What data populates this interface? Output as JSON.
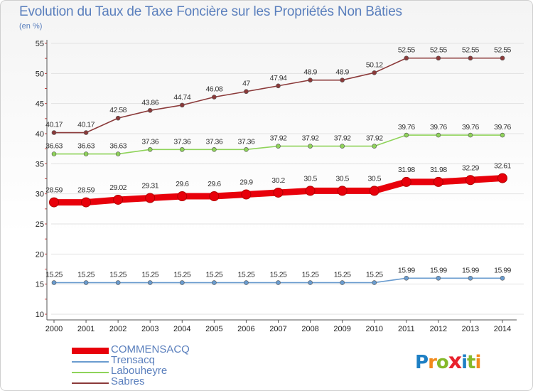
{
  "title": "Evolution du Taux de Taxe Foncière sur les Propriétés Non Bâties",
  "subtitle": "(en %)",
  "logo": {
    "text": [
      "P",
      "r",
      "o",
      "x",
      "i",
      "t",
      "i"
    ],
    "colors": [
      "#1e7fc4",
      "#f28a1c",
      "#86b92a",
      "#e8222d",
      "#1e7fc4",
      "#86b92a",
      "#f28a1c"
    ]
  },
  "chart_data": {
    "type": "line",
    "title": "Evolution du Taux de Taxe Foncière sur les Propriétés Non Bâties",
    "ylabel": "(en %)",
    "xlabel": "",
    "x": [
      "2000",
      "2001",
      "2002",
      "2003",
      "2004",
      "2005",
      "2006",
      "2007",
      "2008",
      "2009",
      "2010",
      "2011",
      "2012",
      "2013",
      "2014"
    ],
    "ylim": [
      10,
      55
    ],
    "yticks": [
      "10",
      "15",
      "20",
      "25",
      "30",
      "35",
      "40",
      "45",
      "50",
      "55"
    ],
    "grid": "horizontal",
    "legend_position": "bottom-left",
    "series": [
      {
        "name": "COMMENSACQ",
        "color": "#e8000b",
        "emphasis": true,
        "values": [
          28.59,
          28.59,
          29.02,
          29.31,
          29.6,
          29.6,
          29.9,
          30.2,
          30.5,
          30.5,
          30.5,
          31.98,
          31.98,
          32.29,
          32.61
        ],
        "labels": [
          "28.59",
          "28.59",
          "29.02",
          "29.31",
          "29.6",
          "29.6",
          "29.9",
          "30.2",
          "30.5",
          "30.5",
          "30.5",
          "31.98",
          "31.98",
          "32.29",
          "32.61"
        ]
      },
      {
        "name": "Trensacq",
        "color": "#6a9ccf",
        "values": [
          15.25,
          15.25,
          15.25,
          15.25,
          15.25,
          15.25,
          15.25,
          15.25,
          15.25,
          15.25,
          15.25,
          15.99,
          15.99,
          15.99,
          15.99
        ],
        "labels": [
          "15.25",
          "15.25",
          "15.25",
          "15.25",
          "15.25",
          "15.25",
          "15.25",
          "15.25",
          "15.25",
          "15.25",
          "15.25",
          "15.99",
          "15.99",
          "15.99",
          "15.99"
        ]
      },
      {
        "name": "Labouheyre",
        "color": "#8fd35a",
        "values": [
          36.63,
          36.63,
          36.63,
          37.36,
          37.36,
          37.36,
          37.36,
          37.92,
          37.92,
          37.92,
          37.92,
          39.76,
          39.76,
          39.76,
          39.76
        ],
        "labels": [
          "36.63",
          "36.63",
          "36.63",
          "37.36",
          "37.36",
          "37.36",
          "37.36",
          "37.92",
          "37.92",
          "37.92",
          "37.92",
          "39.76",
          "39.76",
          "39.76",
          "39.76"
        ]
      },
      {
        "name": "Sabres",
        "color": "#8b3a3a",
        "values": [
          40.17,
          40.17,
          42.58,
          43.86,
          44.74,
          46.08,
          47,
          47.94,
          48.9,
          48.9,
          50.12,
          52.55,
          52.55,
          52.55,
          52.55
        ],
        "labels": [
          "40.17",
          "40.17",
          "42.58",
          "43.86",
          "44.74",
          "46.08",
          "47",
          "47.94",
          "48.9",
          "48.9",
          "50.12",
          "52.55",
          "52.55",
          "52.55",
          "52.55"
        ]
      }
    ]
  }
}
